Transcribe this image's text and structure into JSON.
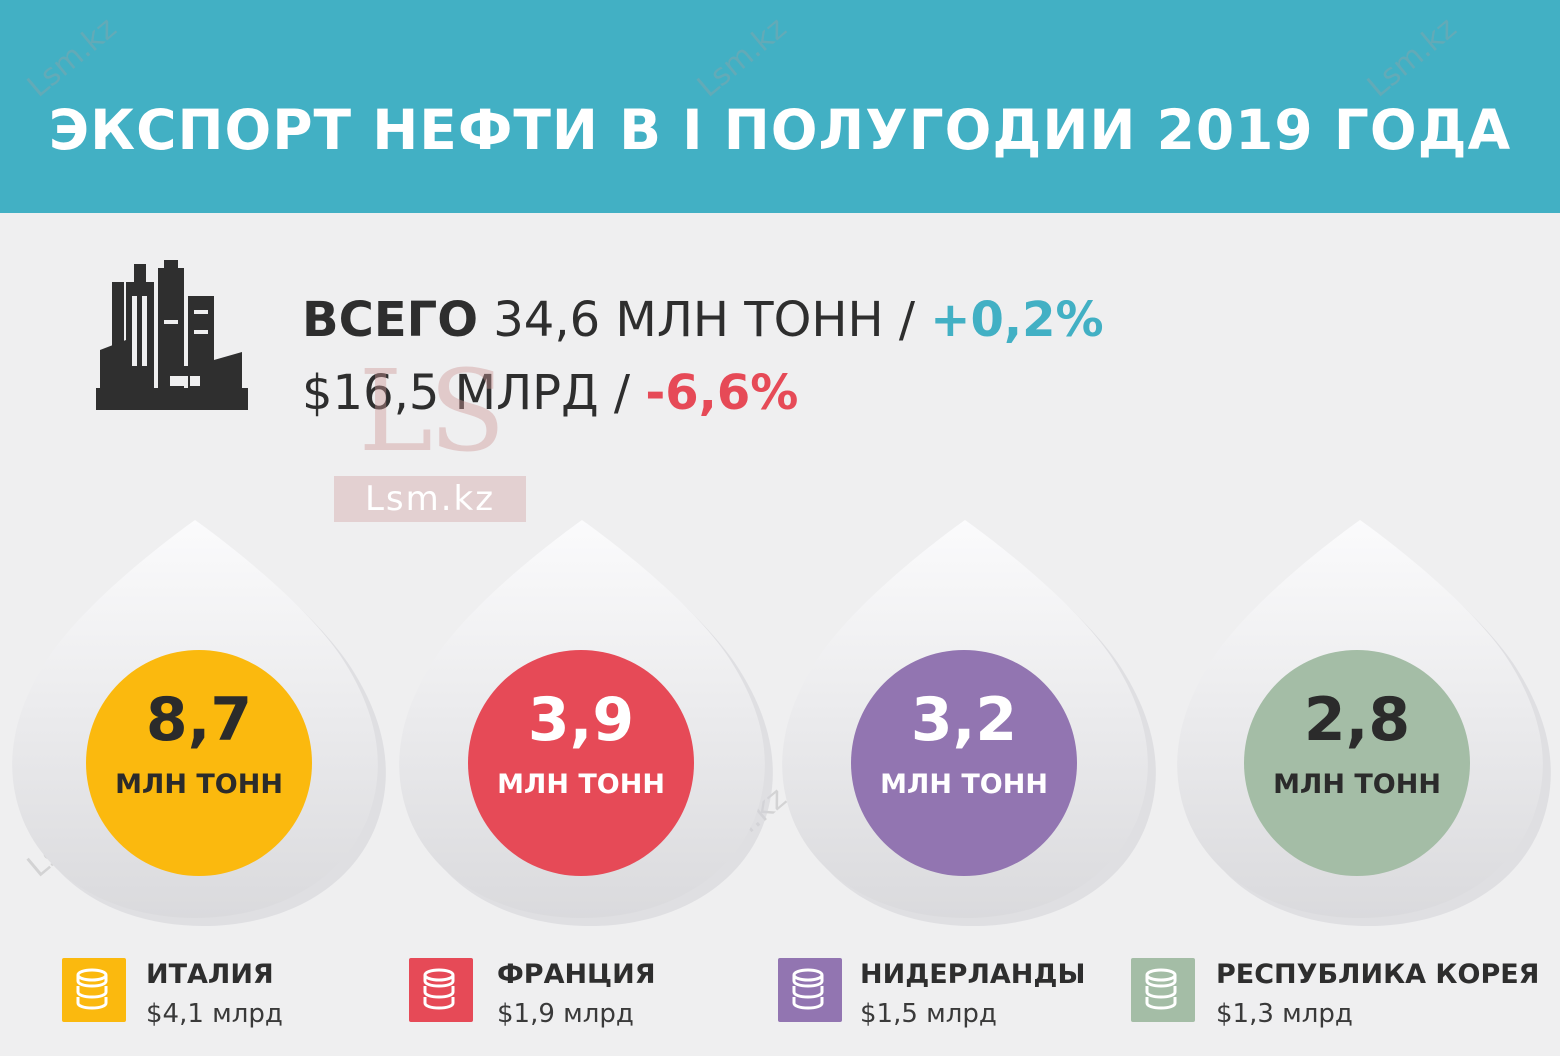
{
  "header": {
    "title": "ЭКСПОРТ НЕФТИ В I ПОЛУГОДИИ 2019 ГОДА"
  },
  "summary": {
    "total_label": "ВСЕГО",
    "tonnage": "34,6 МЛН ТОНН",
    "separator": "/",
    "tonnage_change": "+0,2%",
    "value": "$16,5 МЛРД",
    "value_change": "-6,6%"
  },
  "colors": {
    "header": "#42b0c4",
    "positive": "#42b0c4",
    "negative": "#e64a57",
    "italy": "#fbb90e",
    "france": "#e64a57",
    "netherlands": "#9275b1",
    "korea": "#a4bda6"
  },
  "logo": {
    "letters": "LS",
    "site": "Lsm.kz"
  },
  "watermark": "Lsm.kz",
  "icons": {
    "summary": "oil-refinery-icon",
    "legend": "coins-stack-icon"
  },
  "countries": [
    {
      "value": "8,7",
      "unit": "МЛН ТОНН",
      "name": "ИТАЛИЯ",
      "money": "$4,1 млрд"
    },
    {
      "value": "3,9",
      "unit": "МЛН ТОНН",
      "name": "ФРАНЦИЯ",
      "money": "$1,9 млрд"
    },
    {
      "value": "3,2",
      "unit": "МЛН ТОНН",
      "name": "НИДЕРЛАНДЫ",
      "money": "$1,5 млрд"
    },
    {
      "value": "2,8",
      "unit": "МЛН ТОНН",
      "name": "РЕСПУБЛИКА КОРЕЯ",
      "money": "$1,3 млрд"
    }
  ]
}
